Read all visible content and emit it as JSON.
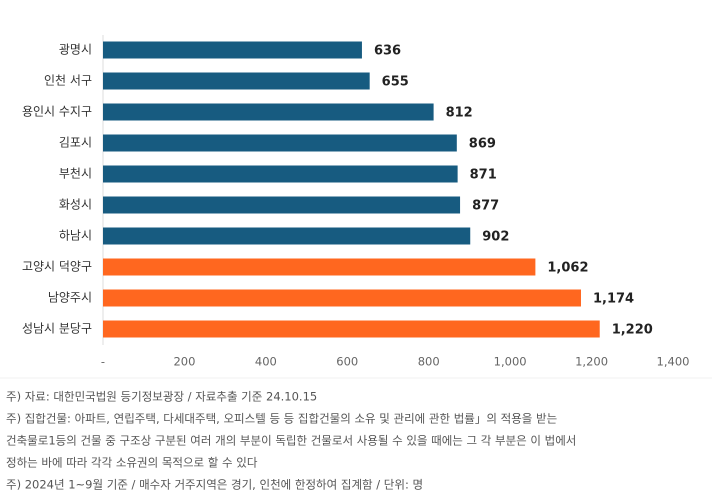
{
  "chart_data": {
    "type": "bar",
    "orientation": "horizontal",
    "categories": [
      "광명시",
      "인천 서구",
      "용인시 수지구",
      "김포시",
      "부천시",
      "화성시",
      "하남시",
      "고양시 덕양구",
      "남양주시",
      "성남시 분당구"
    ],
    "values": [
      636,
      655,
      812,
      869,
      871,
      877,
      902,
      1062,
      1174,
      1220
    ],
    "value_labels": [
      "636",
      "655",
      "812",
      "869",
      "871",
      "877",
      "902",
      "1,062",
      "1,174",
      "1,220"
    ],
    "colors": [
      "#175b80",
      "#175b80",
      "#175b80",
      "#175b80",
      "#175b80",
      "#175b80",
      "#175b80",
      "#ff671f",
      "#ff671f",
      "#ff671f"
    ],
    "xlim": [
      0,
      1400
    ],
    "xticks": [
      {
        "value": 0,
        "label": "-"
      },
      200,
      400,
      600,
      800,
      {
        "value": 1000,
        "label": "1,000"
      },
      {
        "value": 1200,
        "label": "1,200"
      },
      {
        "value": 1400,
        "label": "1,400"
      }
    ],
    "grid": false,
    "notes": [
      "주) 자료: 대한민국법원 등기정보광장 / 자료추출 기준 24.10.15",
      "주) 집합건물: 아파트, 연립주택, 다세대주택, 오피스텔 등 등  집합건물의 소유 및 관리에 관한 법률」의 적용을 받는",
      "건축물로1등의 건물 중 구조상 구분된 여러 개의 부분이 독립한 건물로서 사용될 수 있을 때에는 그 각 부분은 이 법에서",
      "정하는 바에 따라 각각 소유권의 목적으로 할 수 있다",
      "주) 2024년 1~9월 기준 / 매수자 거주지역은 경기, 인천에 한정하여 집계함 / 단위: 명"
    ]
  }
}
